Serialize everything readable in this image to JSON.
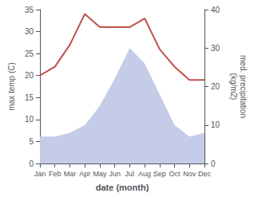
{
  "chart_data": {
    "type": "line",
    "categories": [
      "Jan",
      "Feb",
      "Mar",
      "Apr",
      "May",
      "Jun",
      "Jul",
      "Aug",
      "Sep",
      "Oct",
      "Nov",
      "Dec"
    ],
    "series": [
      {
        "type": "area",
        "color": "#c5cce8",
        "axis": "y2",
        "values": [
          7,
          7,
          8,
          10,
          15,
          22,
          30,
          26,
          18,
          10,
          7,
          8
        ]
      },
      {
        "type": "line",
        "color": "#c0504d",
        "values": [
          20,
          22,
          27,
          34,
          31,
          31,
          31,
          33,
          26,
          22,
          19,
          19
        ]
      }
    ],
    "xlabel": "date (month)",
    "ylabel": "max temp (C)",
    "y2label": "med. precipitation\n(kg/m2)",
    "ylim": [
      0,
      35
    ],
    "yticks": [
      0,
      5,
      10,
      15,
      20,
      25,
      30,
      35
    ],
    "y2lim": [
      0,
      40
    ],
    "y2ticks": [
      0,
      10,
      20,
      30,
      40
    ],
    "grid": false
  }
}
